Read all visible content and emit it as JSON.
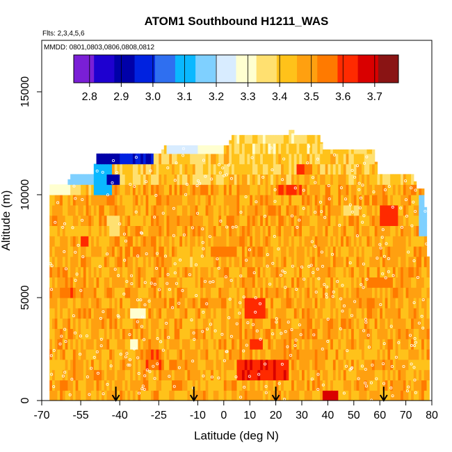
{
  "chart_data": {
    "type": "heatmap",
    "title": "ATOM1 Southbound H1211_WAS",
    "flights_note": "Flts: 2,3,4,5,6",
    "dates_note": "MMDD: 0801,0803,0806,0808,0812",
    "xlabel": "Latitude (deg N)",
    "ylabel": "Altitude (m)",
    "xlim": [
      -70,
      80
    ],
    "ylim": [
      0,
      17500
    ],
    "x_ticks": [
      -70,
      -55,
      -40,
      -25,
      -10,
      0,
      10,
      20,
      30,
      40,
      50,
      60,
      70,
      80
    ],
    "y_ticks": [
      0,
      5000,
      10000,
      15000
    ],
    "colorbar": {
      "range": [
        2.75,
        3.775
      ],
      "ticks": [
        2.8,
        2.9,
        3.0,
        3.1,
        3.2,
        3.3,
        3.4,
        3.5,
        3.6,
        3.7
      ],
      "colors": [
        "#7a1fd6",
        "#1e00d0",
        "#0000a8",
        "#0022e0",
        "#2f6ff0",
        "#0ab8ff",
        "#7fd0ff",
        "#d8ecff",
        "#ffffd0",
        "#ffe070",
        "#ffc21a",
        "#ffa010",
        "#ff7a00",
        "#ff2a00",
        "#d90000",
        "#8a1414"
      ]
    },
    "markers_latitude": [
      -41.5,
      -11.5,
      20,
      61.5
    ],
    "envelope_top": [
      {
        "lat": -67,
        "alt": 10500
      },
      {
        "lat": -60,
        "alt": 10500
      },
      {
        "lat": -59,
        "alt": 11000
      },
      {
        "lat": -50,
        "alt": 11000
      },
      {
        "lat": -49,
        "alt": 12000
      },
      {
        "lat": -24,
        "alt": 12000
      },
      {
        "lat": -23,
        "alt": 12400
      },
      {
        "lat": 2,
        "alt": 12400
      },
      {
        "lat": 3,
        "alt": 12900
      },
      {
        "lat": 25,
        "alt": 12900
      },
      {
        "lat": 26,
        "alt": 13400
      },
      {
        "lat": 27,
        "alt": 12900
      },
      {
        "lat": 37,
        "alt": 12900
      },
      {
        "lat": 38,
        "alt": 12200
      },
      {
        "lat": 58,
        "alt": 12200
      },
      {
        "lat": 59,
        "alt": 11000
      },
      {
        "lat": 73,
        "alt": 11000
      },
      {
        "lat": 74,
        "alt": 10300
      },
      {
        "lat": 77,
        "alt": 10300
      },
      {
        "lat": 78,
        "alt": 8500
      },
      {
        "lat": 79,
        "alt": 5500
      }
    ],
    "patches": [
      {
        "lat": [
          -40,
          -27
        ],
        "alt": [
          11300,
          12000
        ],
        "value": 2.95
      },
      {
        "lat": [
          -50,
          -40
        ],
        "alt": [
          11500,
          12000
        ],
        "value": 2.9
      },
      {
        "lat": [
          -45,
          -40
        ],
        "alt": [
          10500,
          11000
        ],
        "value": 2.88
      },
      {
        "lat": [
          -50,
          -43
        ],
        "alt": [
          10000,
          11500
        ],
        "value": 3.1
      },
      {
        "lat": [
          -60,
          -50
        ],
        "alt": [
          10500,
          11000
        ],
        "value": 3.15
      },
      {
        "lat": [
          -67,
          -59
        ],
        "alt": [
          10000,
          10500
        ],
        "value": 3.28
      },
      {
        "lat": [
          -22,
          -10
        ],
        "alt": [
          11900,
          12400
        ],
        "value": 3.22
      },
      {
        "lat": [
          -12,
          0
        ],
        "alt": [
          11900,
          12400
        ],
        "value": 3.3
      },
      {
        "lat": [
          75,
          78
        ],
        "alt": [
          7800,
          10000
        ],
        "value": 3.15
      },
      {
        "lat": [
          -10,
          5
        ],
        "alt": [
          11000,
          11500
        ],
        "value": 3.4
      },
      {
        "lat": [
          8,
          16
        ],
        "alt": [
          4200,
          4800
        ],
        "value": 3.62
      },
      {
        "lat": [
          5,
          25
        ],
        "alt": [
          1200,
          2000
        ],
        "value": 3.64
      },
      {
        "lat": [
          10,
          15
        ],
        "alt": [
          2600,
          3000
        ],
        "value": 3.6
      },
      {
        "lat": [
          38,
          44
        ],
        "alt": [
          0,
          600
        ],
        "value": 3.66
      },
      {
        "lat": [
          -55,
          -52
        ],
        "alt": [
          7700,
          8200
        ],
        "value": 3.62
      },
      {
        "lat": [
          -36,
          -30
        ],
        "alt": [
          4000,
          4700
        ],
        "value": 3.3
      },
      {
        "lat": [
          -36,
          -33
        ],
        "alt": [
          2500,
          3000
        ],
        "value": 3.28
      },
      {
        "lat": [
          -45,
          -40
        ],
        "alt": [
          8000,
          9000
        ],
        "value": 3.38
      },
      {
        "lat": [
          -20,
          -5
        ],
        "alt": [
          6500,
          7100
        ],
        "value": 3.4
      },
      {
        "lat": [
          60,
          67
        ],
        "alt": [
          8500,
          9500
        ],
        "value": 3.62
      },
      {
        "lat": [
          45,
          52
        ],
        "alt": [
          9000,
          9600
        ],
        "value": 3.38
      },
      {
        "lat": [
          20,
          30
        ],
        "alt": [
          9900,
          10400
        ],
        "value": 3.58
      },
      {
        "lat": [
          -5,
          5
        ],
        "alt": [
          7200,
          7700
        ],
        "value": 3.57
      },
      {
        "lat": [
          55,
          65
        ],
        "alt": [
          5500,
          6200
        ],
        "value": 3.55
      },
      {
        "lat": [
          28,
          34
        ],
        "alt": [
          11000,
          11500
        ],
        "value": 3.58
      },
      {
        "lat": [
          -30,
          -24
        ],
        "alt": [
          1700,
          2300
        ],
        "value": 3.58
      },
      {
        "lat": [
          -62,
          -57
        ],
        "alt": [
          5000,
          5600
        ],
        "value": 3.58
      }
    ]
  }
}
